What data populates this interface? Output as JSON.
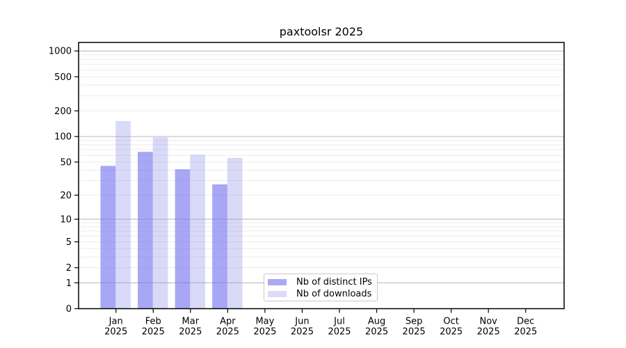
{
  "chart_data": {
    "type": "bar",
    "title": "paxtoolsr 2025",
    "x": {
      "months": [
        "Jan",
        "Feb",
        "Mar",
        "Apr",
        "May",
        "Jun",
        "Jul",
        "Aug",
        "Sep",
        "Oct",
        "Nov",
        "Dec"
      ],
      "year": "2025"
    },
    "y_axis": {
      "scale": "log10(value+1)",
      "tick_labels": [
        "0",
        "1",
        "2",
        "5",
        "10",
        "20",
        "50",
        "100",
        "200",
        "500",
        "1000"
      ],
      "tick_values": [
        0,
        1,
        2,
        5,
        10,
        20,
        50,
        100,
        200,
        500,
        1000
      ],
      "grid_major": [
        1,
        10,
        100,
        1000
      ],
      "grid_minor": [
        2,
        3,
        4,
        5,
        6,
        7,
        8,
        9,
        20,
        30,
        40,
        50,
        60,
        70,
        80,
        90,
        200,
        300,
        400,
        500,
        600,
        700,
        800,
        900
      ],
      "ylim": [
        0,
        1270
      ]
    },
    "series": [
      {
        "name": "Nb of distinct IPs",
        "color": "#a9a9f5",
        "fill": "rgba(122,122,240,0.66)",
        "values": [
          45,
          66,
          41,
          27,
          null,
          null,
          null,
          null,
          null,
          null,
          null,
          null
        ]
      },
      {
        "name": "Nb of downloads",
        "color": "#dbdbf8",
        "fill": "rgba(150,150,235,0.36)",
        "values": [
          152,
          98,
          61,
          56,
          null,
          null,
          null,
          null,
          null,
          null,
          null,
          null
        ]
      }
    ],
    "legend": {
      "position": "bottom-center"
    },
    "grid": "horizontal",
    "colors": {
      "grid_major": "#c2c2c2",
      "grid_minor": "#ebebeb",
      "axis": "#000000",
      "text": "#000000",
      "background": "#ffffff"
    }
  }
}
